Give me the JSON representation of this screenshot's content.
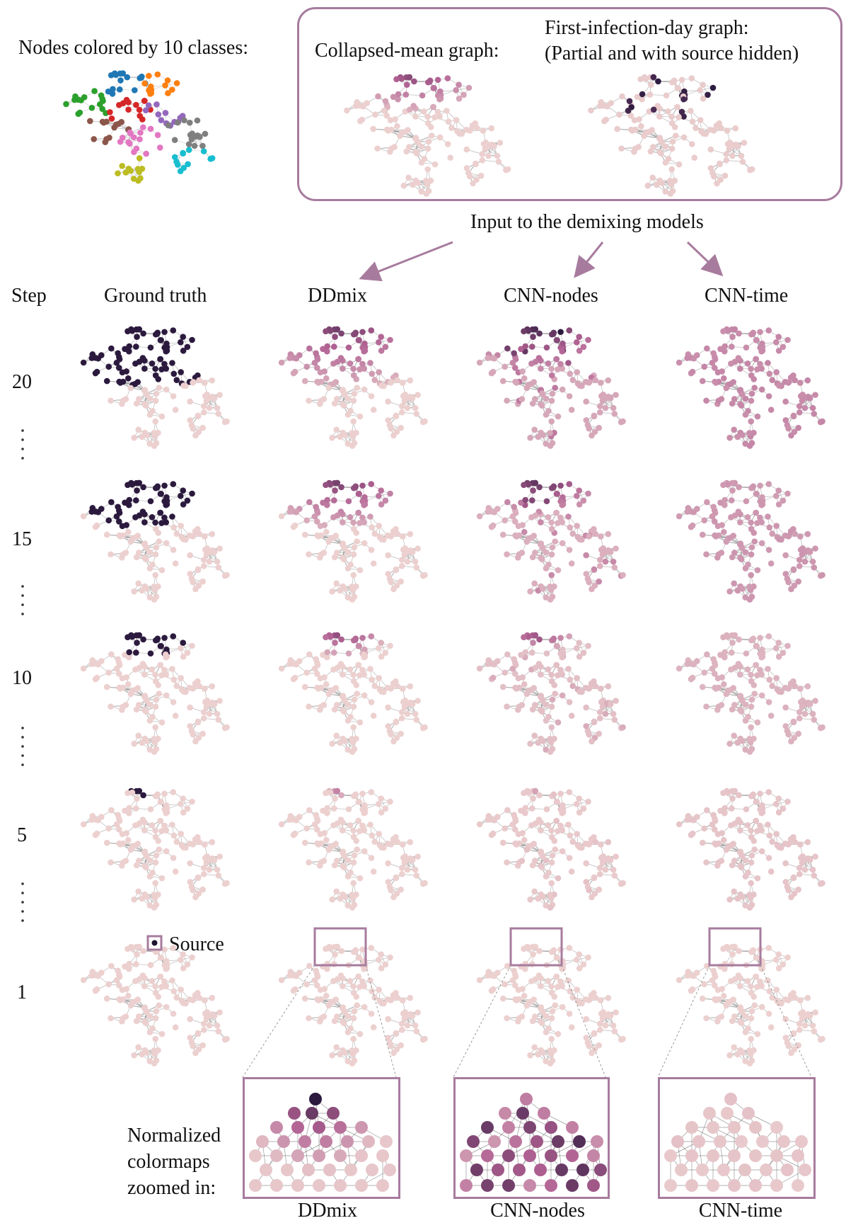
{
  "legend": {
    "classes_title": "Nodes colored by 10 classes:",
    "collapsed_title": "Collapsed-mean graph:",
    "first_infection_title_1": "First-infection-day graph:",
    "first_infection_title_2": "(Partial and with source hidden)",
    "input_caption": "Input to the demixing models",
    "source_label": "Source",
    "class_colors": [
      "#1f77b4",
      "#ff7f0e",
      "#2ca02c",
      "#d62728",
      "#9467bd",
      "#8c564b",
      "#e377c2",
      "#7f7f7f",
      "#bcbd22",
      "#17becf"
    ]
  },
  "columns": {
    "step": "Step",
    "ground_truth": "Ground truth",
    "ddmix": "DDmix",
    "cnn_nodes": "CNN-nodes",
    "cnn_time": "CNN-time"
  },
  "steps": [
    "20",
    "15",
    "10",
    "5",
    "1"
  ],
  "colormap": {
    "low": "#ecd0cf",
    "high": "#2b1a3e"
  },
  "zoom": {
    "caption_line1": "Normalized",
    "caption_line2": "colormaps",
    "caption_line3": "zoomed in:",
    "labels": [
      "DDmix",
      "CNN-nodes",
      "CNN-time"
    ]
  }
}
